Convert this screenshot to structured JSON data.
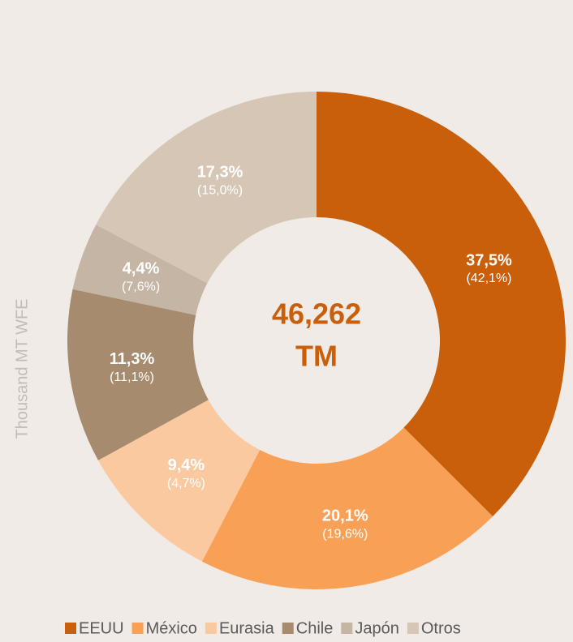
{
  "chart_data": {
    "type": "donut",
    "axis_label": "Thousand MT WFE",
    "center_label": [
      "46,262",
      "TM"
    ],
    "categories": [
      "EEUU",
      "México",
      "Eurasia",
      "Chile",
      "Japón",
      "Otros"
    ],
    "values": [
      37.5,
      20.1,
      9.4,
      11.3,
      4.4,
      17.3
    ],
    "value_labels": [
      "37,5%",
      "20,1%",
      "9,4%",
      "11,3%",
      "4,4%",
      "17,3%"
    ],
    "prior_values": [
      42.1,
      19.6,
      4.7,
      11.1,
      7.6,
      15.0
    ],
    "prior_labels": [
      "(42,1%)",
      "(19,6%)",
      "(4,7%)",
      "(11,1%)",
      "(7,6%)",
      "(15,0%)"
    ],
    "colors": [
      "#c95f0a",
      "#f8a156",
      "#fbc9a0",
      "#a68b6e",
      "#c5b5a4",
      "#d5c6b5"
    ],
    "legend": "bottom"
  }
}
